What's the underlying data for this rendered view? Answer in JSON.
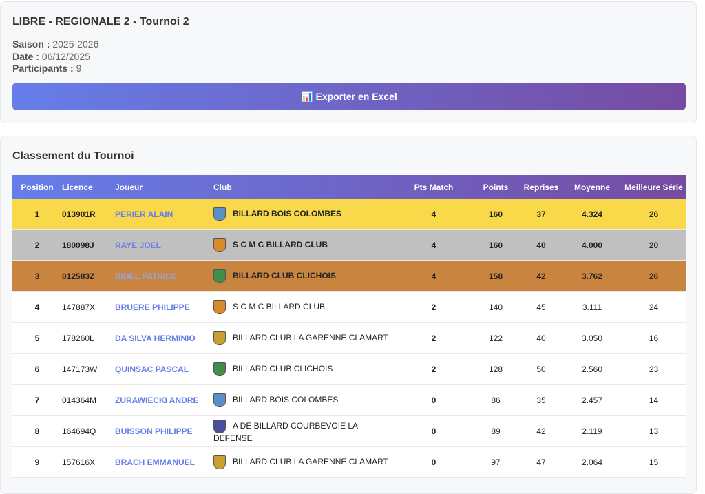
{
  "header": {
    "title": "LIBRE - REGIONALE 2 - Tournoi 2",
    "info": [
      {
        "label": "Saison :",
        "value": "2025-2026"
      },
      {
        "label": "Date :",
        "value": "06/12/2025"
      },
      {
        "label": "Participants :",
        "value": "9"
      }
    ],
    "button": "📊 Exporter en Excel"
  },
  "table": {
    "title": "Classement du Tournoi",
    "columns": [
      "Position",
      "Licence",
      "Joueur",
      "Club",
      "Pts Match",
      "Points",
      "Reprises",
      "Moyenne",
      "Meilleure Série"
    ],
    "rows": [
      [
        "1",
        "013901R",
        "PERIER ALAIN",
        "BILLARD BOIS COLOMBES",
        "4",
        "160",
        "37",
        "4.324",
        "26"
      ],
      [
        "2",
        "180098J",
        "RAYE JOEL",
        "S C M C BILLARD CLUB",
        "4",
        "160",
        "40",
        "4.000",
        "20"
      ],
      [
        "3",
        "012583Z",
        "BIDEL PATRICE",
        "BILLARD CLUB CLICHOIS",
        "4",
        "158",
        "42",
        "3.762",
        "26"
      ],
      [
        "4",
        "147887X",
        "BRUERE PHILIPPE",
        "S C M C BILLARD CLUB",
        "2",
        "140",
        "45",
        "3.111",
        "24"
      ],
      [
        "5",
        "178260L",
        "DA SILVA HERMINIO",
        "BILLARD CLUB LA GARENNE CLAMART",
        "2",
        "122",
        "40",
        "3.050",
        "16"
      ],
      [
        "6",
        "147173W",
        "QUINSAC PASCAL",
        "BILLARD CLUB CLICHOIS",
        "2",
        "128",
        "50",
        "2.560",
        "23"
      ],
      [
        "7",
        "014364M",
        "ZURAWIECKI ANDRE",
        "BILLARD BOIS COLOMBES",
        "0",
        "86",
        "35",
        "2.457",
        "14"
      ],
      [
        "8",
        "164694Q",
        "BUISSON PHILIPPE",
        "A DE BILLARD COURBEVOIE LA DEFENSE",
        "0",
        "89",
        "42",
        "2.119",
        "13"
      ],
      [
        "9",
        "157616X",
        "BRACH EMMANUEL",
        "BILLARD CLUB LA GARENNE CLAMART",
        "0",
        "97",
        "47",
        "2.064",
        "15"
      ]
    ]
  }
}
